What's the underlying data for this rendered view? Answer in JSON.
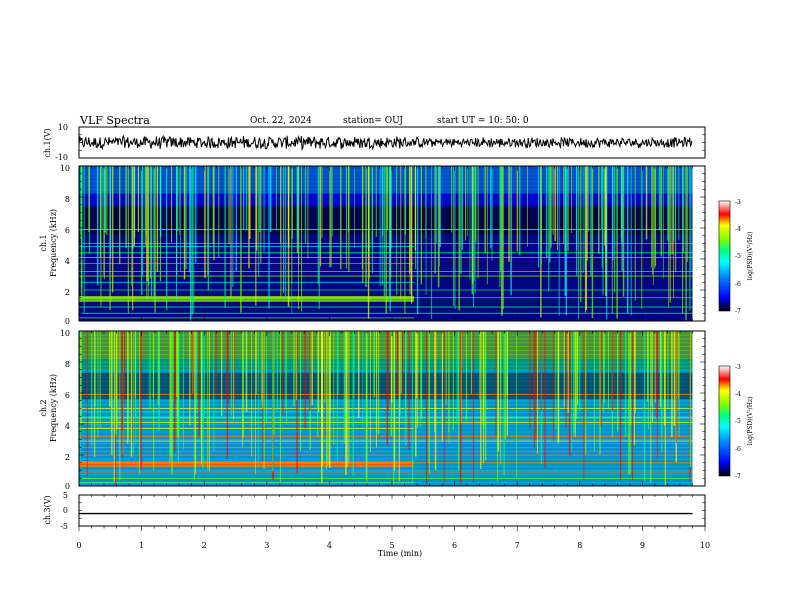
{
  "header": {
    "title": "VLF Spectra",
    "date": "Oct. 22, 2024",
    "station": "station= OUJ",
    "start": "start  UT  =   10: 50: 0"
  },
  "chart_data": [
    {
      "type": "line",
      "panel": "ch.1 waveform",
      "ylabel": "ch.1(V)",
      "ylim": [
        -10,
        10
      ],
      "yticks": [
        "10",
        "-10"
      ],
      "series": [
        {
          "values": [
            [
              0,
              0
            ],
            [
              9.8,
              0
            ]
          ]
        }
      ]
    },
    {
      "type": "heatmap",
      "panel": "ch.1 spectrogram",
      "ylabel": "ch.1\nFrequency (kHz)",
      "ylim": [
        0,
        10
      ],
      "yticks": [
        "0",
        "2",
        "4",
        "6",
        "8",
        "10"
      ],
      "xlim": [
        0,
        10
      ],
      "data_end_min": 9.8,
      "colorbar": {
        "label": "log(PSD)(V²/Hz)",
        "range": [
          -7,
          -3
        ],
        "ticks": [
          "-3",
          "-4",
          "-5",
          "-6",
          "-7"
        ]
      }
    },
    {
      "type": "heatmap",
      "panel": "ch.2 spectrogram",
      "ylabel": "ch.2\nFrequency (kHz)",
      "ylim": [
        0,
        10
      ],
      "yticks": [
        "0",
        "2",
        "4",
        "6",
        "8",
        "10"
      ],
      "xlim": [
        0,
        10
      ],
      "data_end_min": 9.8,
      "colorbar": {
        "label": "log(PSD)(V²/Hz)",
        "range": [
          -7,
          -3
        ],
        "ticks": [
          "-3",
          "-4",
          "-5",
          "-6",
          "-7"
        ]
      }
    },
    {
      "type": "line",
      "panel": "ch.3 waveform",
      "ylabel": "ch.3(V)",
      "ylim": [
        -5,
        5
      ],
      "yticks": [
        "5",
        "0",
        "-5"
      ],
      "xlabel": "Time  (min)",
      "xlim": [
        0,
        10
      ],
      "xticks": [
        "0",
        "1",
        "2",
        "3",
        "4",
        "5",
        "6",
        "7",
        "8",
        "9",
        "10"
      ],
      "series": [
        {
          "values": [
            [
              0,
              -1
            ],
            [
              9.8,
              -1
            ]
          ]
        }
      ]
    }
  ],
  "colors": {
    "cmap": [
      "#000000",
      "#00007a",
      "#0000ff",
      "#0080ff",
      "#00ffff",
      "#00ff80",
      "#80ff00",
      "#ffff00",
      "#ff8000",
      "#ff0000",
      "#ffffff"
    ]
  }
}
